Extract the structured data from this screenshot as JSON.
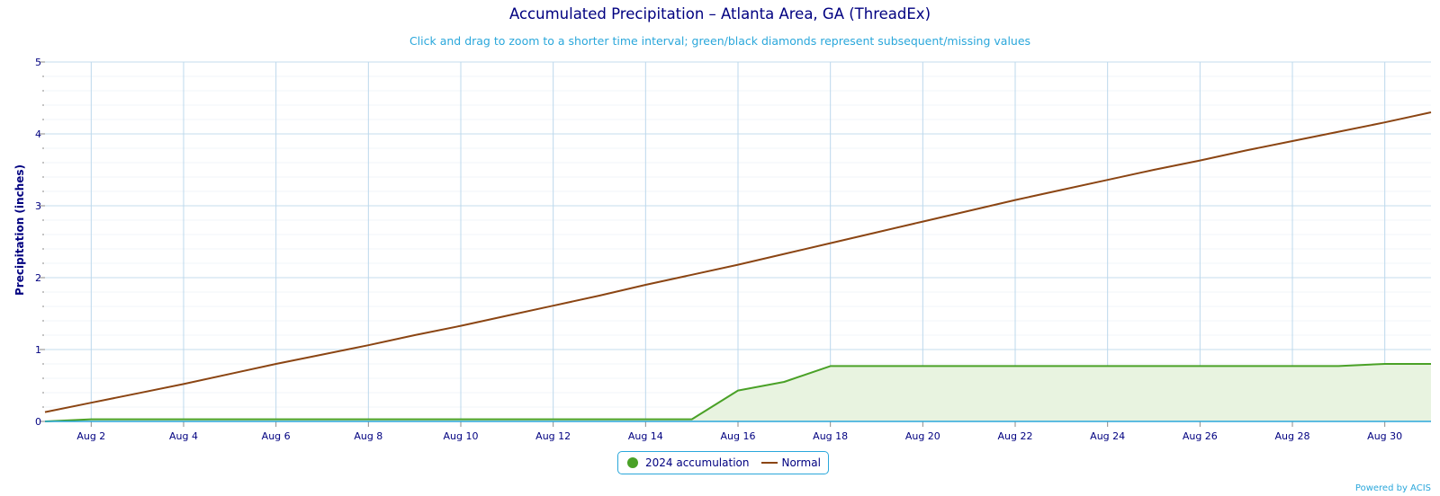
{
  "chart_data": {
    "type": "area",
    "title": "Accumulated Precipitation – Atlanta Area, GA (ThreadEx)",
    "subtitle": "Click and drag to zoom to a shorter time interval; green/black diamonds represent subsequent/missing values",
    "xlabel": "",
    "ylabel": "Precipitation (inches)",
    "ylim": [
      0,
      5
    ],
    "xlim": [
      1,
      31
    ],
    "y_ticks": [
      0,
      1,
      2,
      3,
      4,
      5
    ],
    "x_tick_days": [
      2,
      4,
      6,
      8,
      10,
      12,
      14,
      16,
      18,
      20,
      22,
      24,
      26,
      28,
      30
    ],
    "x_tick_labels": [
      "Aug 2",
      "Aug 4",
      "Aug 6",
      "Aug 8",
      "Aug 10",
      "Aug 12",
      "Aug 14",
      "Aug 16",
      "Aug 18",
      "Aug 20",
      "Aug 22",
      "Aug 24",
      "Aug 26",
      "Aug 28",
      "Aug 30"
    ],
    "grid": true,
    "legend_position": "bottom-center",
    "series": [
      {
        "name": "2024 accumulation",
        "color": "#4aa127",
        "fill": "#e8f3e0",
        "x": [
          1,
          2,
          3,
          4,
          5,
          6,
          7,
          8,
          9,
          10,
          11,
          12,
          13,
          14,
          15,
          16,
          17,
          18,
          19,
          20,
          21,
          22,
          23,
          24,
          25,
          26,
          27,
          28,
          29,
          30,
          31
        ],
        "values": [
          0.0,
          0.03,
          0.03,
          0.03,
          0.03,
          0.03,
          0.03,
          0.03,
          0.03,
          0.03,
          0.03,
          0.03,
          0.03,
          0.03,
          0.03,
          0.43,
          0.55,
          0.77,
          0.77,
          0.77,
          0.77,
          0.77,
          0.77,
          0.77,
          0.77,
          0.77,
          0.77,
          0.77,
          0.77,
          0.8,
          0.8
        ]
      },
      {
        "name": "Normal",
        "color": "#8b4513",
        "x": [
          1,
          2,
          3,
          4,
          5,
          6,
          7,
          8,
          9,
          10,
          11,
          12,
          13,
          14,
          15,
          16,
          17,
          18,
          19,
          20,
          21,
          22,
          23,
          24,
          25,
          26,
          27,
          28,
          29,
          30,
          31
        ],
        "values": [
          0.13,
          0.26,
          0.39,
          0.52,
          0.66,
          0.8,
          0.93,
          1.06,
          1.2,
          1.33,
          1.47,
          1.61,
          1.75,
          1.9,
          2.04,
          2.18,
          2.33,
          2.48,
          2.63,
          2.78,
          2.93,
          3.08,
          3.22,
          3.36,
          3.5,
          3.63,
          3.77,
          3.9,
          4.03,
          4.16,
          4.3
        ]
      }
    ]
  },
  "legend": {
    "items": [
      {
        "label": "2024 accumulation",
        "color": "#4aa127"
      },
      {
        "label": "Normal",
        "color": "#8b4513"
      }
    ]
  },
  "credits": "Powered by ACIS"
}
